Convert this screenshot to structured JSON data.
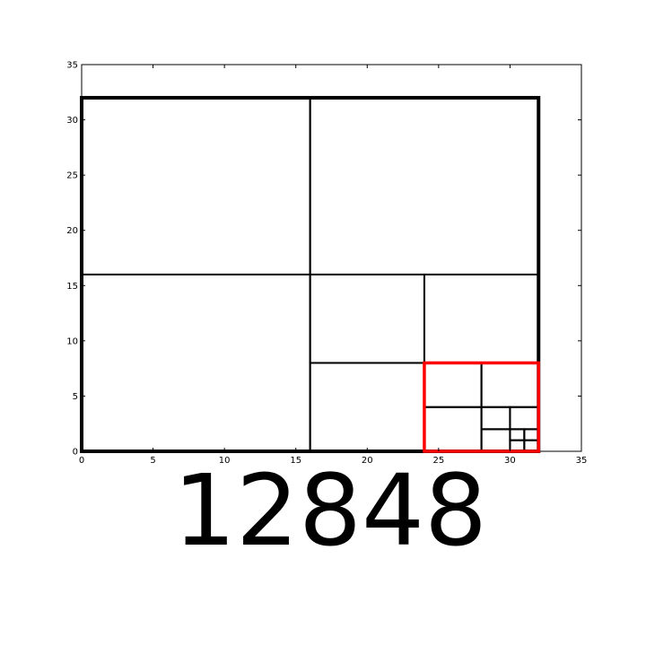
{
  "chart_data": {
    "type": "diagram",
    "xlim": [
      0,
      35
    ],
    "ylim": [
      0,
      35
    ],
    "x_ticks": [
      "0",
      "5",
      "10",
      "15",
      "20",
      "25",
      "30",
      "35"
    ],
    "y_ticks": [
      "0",
      "5",
      "10",
      "15",
      "20",
      "25",
      "30",
      "35"
    ],
    "grid": false,
    "outer_square": {
      "x": 0,
      "y": 0,
      "size": 32
    },
    "squares": [
      {
        "x": 0,
        "y": 0,
        "size": 16
      },
      {
        "x": 0,
        "y": 16,
        "size": 16
      },
      {
        "x": 16,
        "y": 16,
        "size": 16
      },
      {
        "x": 16,
        "y": 0,
        "size": 8
      },
      {
        "x": 16,
        "y": 8,
        "size": 8
      },
      {
        "x": 24,
        "y": 8,
        "size": 8
      },
      {
        "x": 24,
        "y": 0,
        "size": 4
      },
      {
        "x": 24,
        "y": 4,
        "size": 4
      },
      {
        "x": 28,
        "y": 4,
        "size": 4
      },
      {
        "x": 28,
        "y": 0,
        "size": 2
      },
      {
        "x": 28,
        "y": 2,
        "size": 2
      },
      {
        "x": 30,
        "y": 2,
        "size": 2
      },
      {
        "x": 30,
        "y": 0,
        "size": 1
      },
      {
        "x": 30,
        "y": 1,
        "size": 1
      },
      {
        "x": 31,
        "y": 0,
        "size": 1
      },
      {
        "x": 31,
        "y": 1,
        "size": 1
      }
    ],
    "highlight": {
      "x": 24,
      "y": 0,
      "size": 8,
      "color": "#ff0000"
    }
  },
  "caption": "12848"
}
